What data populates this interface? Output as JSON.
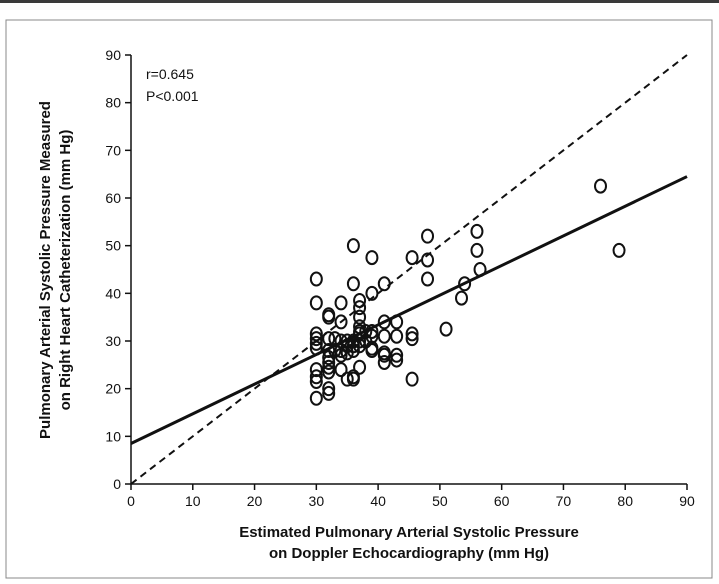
{
  "chart_data": {
    "type": "scatter",
    "title": "",
    "xlabel": [
      "Estimated Pulmonary Arterial Systolic Pressure",
      "on Doppler Echocardiography (mm Hg)"
    ],
    "ylabel": [
      "Pulmonary Arterial Systolic Pressure Measured",
      "on Right Heart Catheterization (mm Hg)"
    ],
    "xlim": [
      0,
      90
    ],
    "ylim": [
      0,
      90
    ],
    "xticks": [
      "0",
      "10",
      "20",
      "30",
      "40",
      "50",
      "60",
      "70",
      "80",
      "90"
    ],
    "yticks": [
      "0",
      "10",
      "20",
      "30",
      "40",
      "50",
      "60",
      "70",
      "80",
      "90"
    ],
    "grid": false,
    "annotations": [
      "r=0.645",
      "P<0.001"
    ],
    "identity_line": {
      "style": "dashed",
      "from": [
        0,
        0
      ],
      "to": [
        90,
        90
      ]
    },
    "regression_line": {
      "style": "solid",
      "from": [
        0,
        8.5
      ],
      "to": [
        90,
        64.5
      ]
    },
    "points": [
      [
        30,
        43
      ],
      [
        30,
        38
      ],
      [
        30,
        31.5
      ],
      [
        30,
        30.5
      ],
      [
        30,
        29.5
      ],
      [
        30,
        28.5
      ],
      [
        30,
        24
      ],
      [
        30,
        22.5
      ],
      [
        30,
        21.5
      ],
      [
        30,
        18
      ],
      [
        32,
        35.5
      ],
      [
        32,
        35
      ],
      [
        32,
        30.5
      ],
      [
        32,
        28
      ],
      [
        32,
        26.5
      ],
      [
        32,
        25.5
      ],
      [
        32,
        24.5
      ],
      [
        32,
        23.5
      ],
      [
        32,
        20
      ],
      [
        32,
        19
      ],
      [
        33,
        30.5
      ],
      [
        33,
        28
      ],
      [
        34,
        38
      ],
      [
        34,
        34
      ],
      [
        34,
        30
      ],
      [
        34,
        28
      ],
      [
        34,
        27
      ],
      [
        34,
        24
      ],
      [
        35,
        30
      ],
      [
        35,
        29
      ],
      [
        35,
        27.5
      ],
      [
        35,
        22
      ],
      [
        36,
        50
      ],
      [
        36,
        42
      ],
      [
        36,
        30
      ],
      [
        36,
        29
      ],
      [
        36,
        28
      ],
      [
        36,
        22.5
      ],
      [
        36,
        22
      ],
      [
        37,
        38.5
      ],
      [
        37,
        37
      ],
      [
        37,
        35
      ],
      [
        37,
        33
      ],
      [
        37,
        32
      ],
      [
        37,
        31.5
      ],
      [
        37,
        30
      ],
      [
        37,
        29
      ],
      [
        37,
        24.5
      ],
      [
        38,
        32
      ],
      [
        38,
        30
      ],
      [
        39,
        47.5
      ],
      [
        39,
        40
      ],
      [
        39,
        32
      ],
      [
        39,
        31
      ],
      [
        39,
        28.5
      ],
      [
        39,
        28
      ],
      [
        41,
        42
      ],
      [
        41,
        34
      ],
      [
        41,
        31
      ],
      [
        41,
        27.5
      ],
      [
        41,
        27
      ],
      [
        41,
        25.5
      ],
      [
        43,
        34
      ],
      [
        43,
        31
      ],
      [
        43,
        27
      ],
      [
        43,
        26
      ],
      [
        45.5,
        47.5
      ],
      [
        45.5,
        31.5
      ],
      [
        45.5,
        30.5
      ],
      [
        45.5,
        22
      ],
      [
        48,
        52
      ],
      [
        48,
        47
      ],
      [
        48,
        43
      ],
      [
        51,
        32.5
      ],
      [
        53.5,
        39
      ],
      [
        54,
        42
      ],
      [
        56,
        53
      ],
      [
        56,
        49
      ],
      [
        56.5,
        45
      ],
      [
        76,
        62.5
      ],
      [
        79,
        49
      ]
    ]
  }
}
